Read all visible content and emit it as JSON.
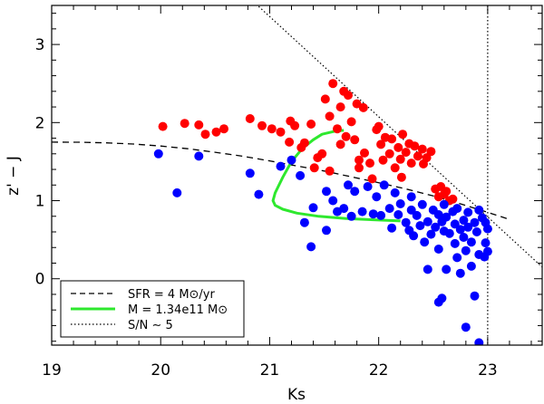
{
  "chart_data": {
    "type": "scatter",
    "xlabel": "Ks",
    "ylabel": "z' − J",
    "xlim": [
      19,
      23.5
    ],
    "ylim": [
      -0.85,
      3.5
    ],
    "xticks": [
      19,
      20,
      21,
      22,
      23
    ],
    "yticks": [
      0,
      1,
      2,
      3
    ],
    "grid": false,
    "legend_position": "bottom-left",
    "legend": [
      {
        "style": "dashed",
        "color": "#000000",
        "text": "SFR = 4 M⊙/yr"
      },
      {
        "style": "solid",
        "color": "#2ee82e",
        "text": "M = 1.34e11 M⊙"
      },
      {
        "style": "dotted",
        "color": "#000000",
        "text": "S/N ∼ 5"
      }
    ],
    "red_points": [
      [
        20.02,
        1.95
      ],
      [
        20.22,
        1.99
      ],
      [
        20.35,
        1.97
      ],
      [
        20.41,
        1.85
      ],
      [
        20.51,
        1.88
      ],
      [
        20.58,
        1.92
      ],
      [
        20.82,
        2.05
      ],
      [
        20.93,
        1.96
      ],
      [
        21.02,
        1.92
      ],
      [
        21.1,
        1.88
      ],
      [
        21.19,
        2.02
      ],
      [
        21.23,
        1.96
      ],
      [
        21.18,
        1.75
      ],
      [
        21.32,
        1.74
      ],
      [
        21.38,
        1.98
      ],
      [
        21.29,
        1.68
      ],
      [
        21.41,
        1.42
      ],
      [
        21.44,
        1.55
      ],
      [
        21.48,
        1.6
      ],
      [
        21.51,
        2.3
      ],
      [
        21.55,
        2.08
      ],
      [
        21.55,
        1.38
      ],
      [
        21.58,
        2.5
      ],
      [
        21.62,
        1.92
      ],
      [
        21.65,
        2.2
      ],
      [
        21.68,
        2.4
      ],
      [
        21.65,
        1.72
      ],
      [
        21.72,
        2.35
      ],
      [
        21.7,
        1.82
      ],
      [
        21.75,
        2.01
      ],
      [
        21.78,
        1.78
      ],
      [
        21.8,
        2.24
      ],
      [
        21.82,
        1.42
      ],
      [
        21.86,
        2.19
      ],
      [
        21.82,
        1.52
      ],
      [
        21.87,
        1.61
      ],
      [
        21.92,
        1.48
      ],
      [
        21.94,
        1.28
      ],
      [
        21.98,
        1.91
      ],
      [
        22.0,
        1.95
      ],
      [
        22.02,
        1.72
      ],
      [
        22.04,
        1.52
      ],
      [
        22.06,
        1.81
      ],
      [
        22.1,
        1.6
      ],
      [
        22.12,
        1.79
      ],
      [
        22.15,
        1.42
      ],
      [
        22.18,
        1.68
      ],
      [
        22.2,
        1.53
      ],
      [
        22.22,
        1.85
      ],
      [
        22.25,
        1.62
      ],
      [
        22.28,
        1.73
      ],
      [
        22.3,
        1.48
      ],
      [
        22.33,
        1.7
      ],
      [
        22.36,
        1.57
      ],
      [
        22.4,
        1.66
      ],
      [
        22.41,
        1.47
      ],
      [
        22.44,
        1.55
      ],
      [
        22.48,
        1.63
      ],
      [
        22.21,
        1.3
      ],
      [
        22.52,
        1.15
      ],
      [
        22.55,
        1.05
      ],
      [
        22.57,
        1.18
      ],
      [
        22.6,
        1.08
      ],
      [
        22.62,
        1.12
      ],
      [
        22.65,
        1.0
      ],
      [
        22.68,
        1.02
      ]
    ],
    "blue_points": [
      [
        19.98,
        1.6
      ],
      [
        20.15,
        1.1
      ],
      [
        20.35,
        1.57
      ],
      [
        20.82,
        1.35
      ],
      [
        20.9,
        1.08
      ],
      [
        21.1,
        1.44
      ],
      [
        21.2,
        1.52
      ],
      [
        21.28,
        1.32
      ],
      [
        21.32,
        0.72
      ],
      [
        21.38,
        0.41
      ],
      [
        21.4,
        0.91
      ],
      [
        21.52,
        1.12
      ],
      [
        21.52,
        0.62
      ],
      [
        21.58,
        1.0
      ],
      [
        21.62,
        0.86
      ],
      [
        21.68,
        0.9
      ],
      [
        21.72,
        1.2
      ],
      [
        21.75,
        0.8
      ],
      [
        21.78,
        1.12
      ],
      [
        21.85,
        0.86
      ],
      [
        21.9,
        1.18
      ],
      [
        21.95,
        0.83
      ],
      [
        21.98,
        1.05
      ],
      [
        22.02,
        0.81
      ],
      [
        22.05,
        1.2
      ],
      [
        22.1,
        0.9
      ],
      [
        22.12,
        0.65
      ],
      [
        22.15,
        1.1
      ],
      [
        22.18,
        0.82
      ],
      [
        22.2,
        0.96
      ],
      [
        22.25,
        0.72
      ],
      [
        22.28,
        0.62
      ],
      [
        22.3,
        0.88
      ],
      [
        22.3,
        1.05
      ],
      [
        22.32,
        0.55
      ],
      [
        22.35,
        0.81
      ],
      [
        22.38,
        0.68
      ],
      [
        22.4,
        0.95
      ],
      [
        22.42,
        0.47
      ],
      [
        22.45,
        0.73
      ],
      [
        22.45,
        0.12
      ],
      [
        22.48,
        0.57
      ],
      [
        22.5,
        0.88
      ],
      [
        22.52,
        0.66
      ],
      [
        22.55,
        0.82
      ],
      [
        22.55,
        0.38
      ],
      [
        22.58,
        0.73
      ],
      [
        22.6,
        0.61
      ],
      [
        22.6,
        0.95
      ],
      [
        22.62,
        0.79
      ],
      [
        22.62,
        0.12
      ],
      [
        22.65,
        0.58
      ],
      [
        22.68,
        0.86
      ],
      [
        22.7,
        0.7
      ],
      [
        22.7,
        0.45
      ],
      [
        22.72,
        0.9
      ],
      [
        22.72,
        0.27
      ],
      [
        22.75,
        0.63
      ],
      [
        22.75,
        0.07
      ],
      [
        22.78,
        0.75
      ],
      [
        22.78,
        0.53
      ],
      [
        22.8,
        0.36
      ],
      [
        22.82,
        0.66
      ],
      [
        22.82,
        0.85
      ],
      [
        22.85,
        0.47
      ],
      [
        22.85,
        0.16
      ],
      [
        22.88,
        0.72
      ],
      [
        22.88,
        -0.22
      ],
      [
        22.9,
        0.6
      ],
      [
        22.92,
        0.31
      ],
      [
        22.92,
        0.88
      ],
      [
        22.95,
        0.78
      ],
      [
        22.97,
        0.28
      ],
      [
        22.98,
        0.46
      ],
      [
        23.0,
        0.64
      ],
      [
        22.98,
        0.72
      ],
      [
        22.58,
        -0.25
      ],
      [
        22.55,
        -0.3
      ],
      [
        22.8,
        -0.62
      ],
      [
        22.92,
        -0.82
      ],
      [
        23.0,
        0.35
      ]
    ],
    "sfr_curve": [
      [
        19.0,
        1.75
      ],
      [
        19.25,
        1.748
      ],
      [
        19.5,
        1.74
      ],
      [
        19.75,
        1.725
      ],
      [
        20.0,
        1.7
      ],
      [
        20.25,
        1.665
      ],
      [
        20.5,
        1.62
      ],
      [
        20.75,
        1.57
      ],
      [
        21.0,
        1.51
      ],
      [
        21.25,
        1.445
      ],
      [
        21.5,
        1.38
      ],
      [
        21.75,
        1.305
      ],
      [
        22.0,
        1.23
      ],
      [
        22.25,
        1.15
      ],
      [
        22.5,
        1.06
      ],
      [
        22.75,
        0.96
      ],
      [
        23.0,
        0.85
      ],
      [
        23.2,
        0.76
      ]
    ],
    "mass_track": [
      [
        21.68,
        1.9
      ],
      [
        21.6,
        1.89
      ],
      [
        21.48,
        1.85
      ],
      [
        21.4,
        1.78
      ],
      [
        21.3,
        1.67
      ],
      [
        21.2,
        1.5
      ],
      [
        21.12,
        1.3
      ],
      [
        21.05,
        1.1
      ],
      [
        21.03,
        1.0
      ],
      [
        21.05,
        0.94
      ],
      [
        21.12,
        0.89
      ],
      [
        21.25,
        0.84
      ],
      [
        21.45,
        0.8
      ],
      [
        21.7,
        0.77
      ],
      [
        21.95,
        0.755
      ],
      [
        22.2,
        0.74
      ]
    ],
    "sn_line": [
      [
        20.85,
        3.55
      ],
      [
        23.5,
        0.15
      ]
    ],
    "vline_x": 23.0
  }
}
